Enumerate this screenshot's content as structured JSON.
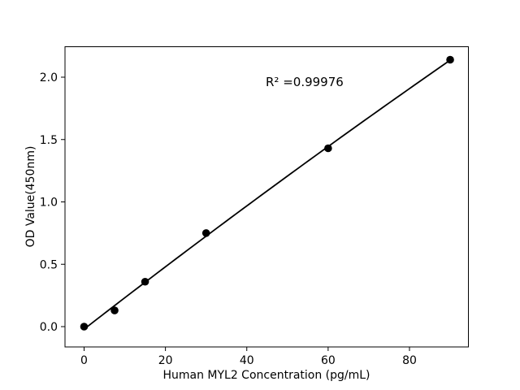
{
  "chart_data": {
    "type": "scatter",
    "title": "",
    "xlabel": "Human MYL2 Concentration (pg/mL)",
    "ylabel": "OD Value(450nm)",
    "annotation": "R² =0.99976",
    "r_squared": 0.99976,
    "x": [
      0,
      7.5,
      15,
      30,
      60,
      90
    ],
    "y": [
      0.0,
      0.13,
      0.36,
      0.75,
      1.43,
      2.14
    ],
    "fit": "quadratic",
    "x_ticks": [
      "0",
      "20",
      "40",
      "60",
      "80"
    ],
    "x_tick_values": [
      0,
      20,
      40,
      60,
      80
    ],
    "y_ticks": [
      "0.0",
      "0.5",
      "1.0",
      "1.5",
      "2.0"
    ],
    "y_tick_values": [
      0.0,
      0.5,
      1.0,
      1.5,
      2.0
    ],
    "xlim": [
      -4.7,
      94.5
    ],
    "ylim": [
      -0.16,
      2.24
    ],
    "grid": false,
    "legend": "none",
    "marker_color": "#000000",
    "line_color": "#000000",
    "axis_color": "#000000",
    "background": "#ffffff"
  }
}
